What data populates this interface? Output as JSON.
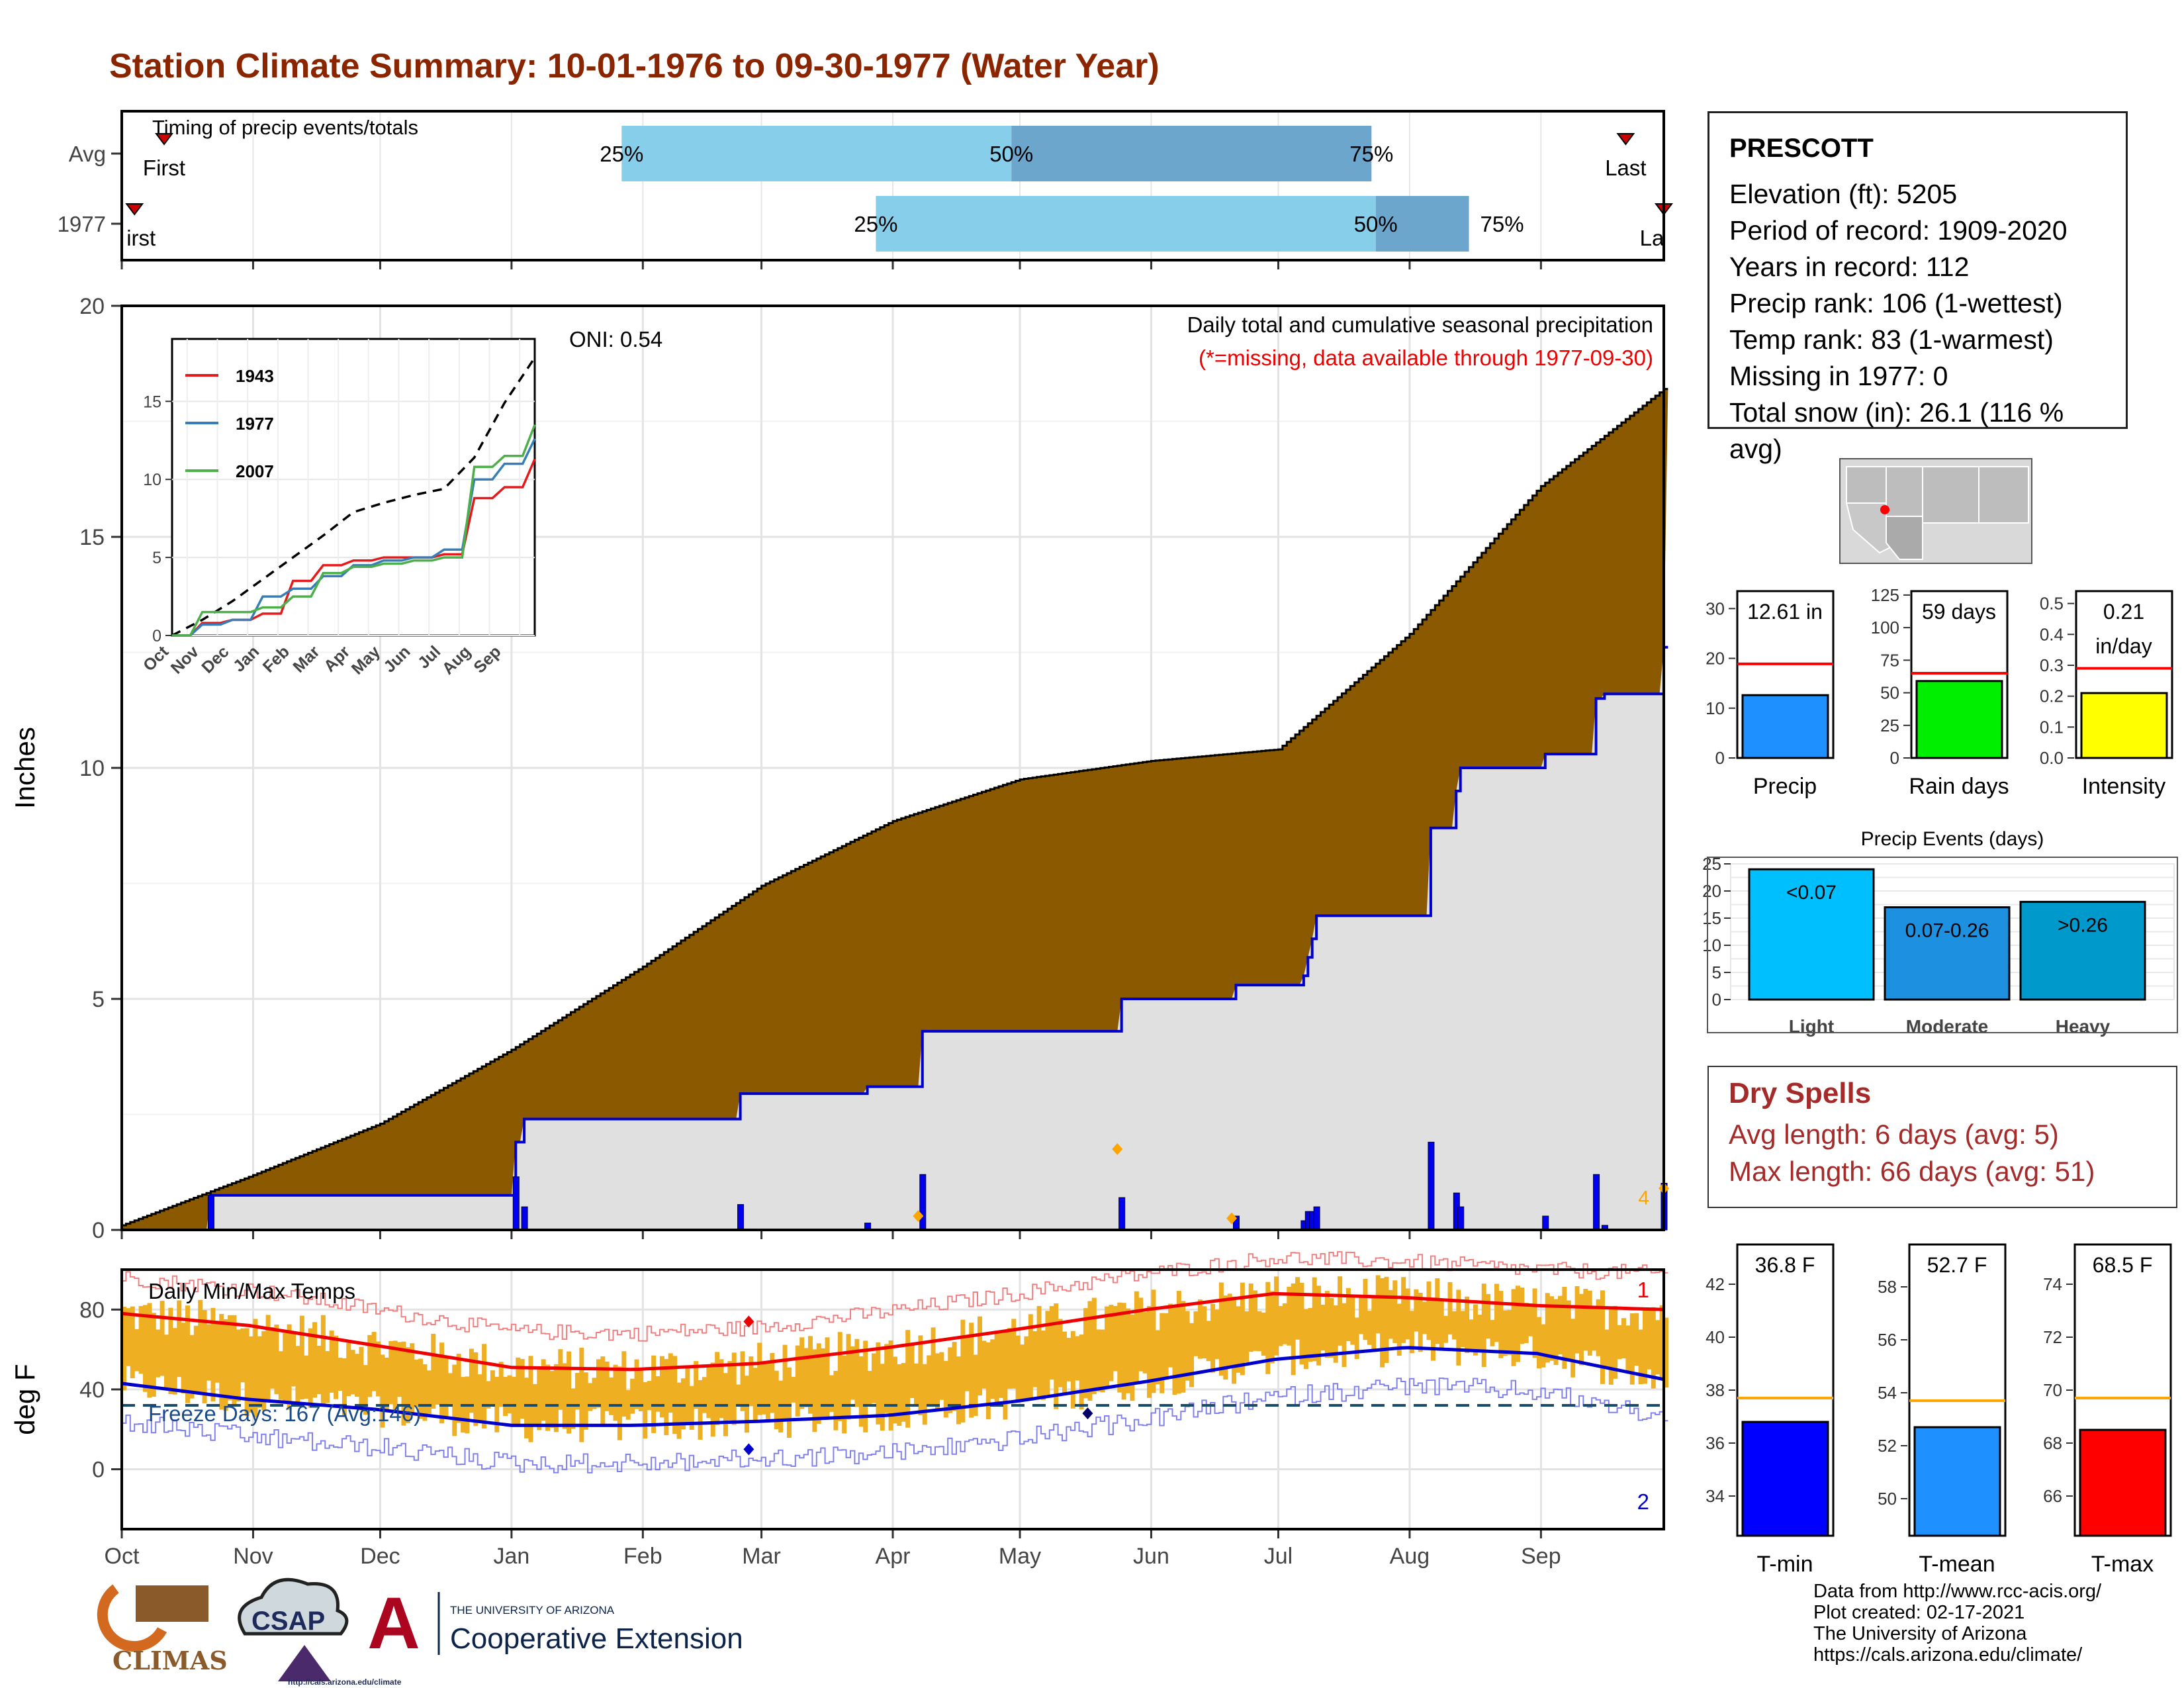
{
  "title": "Station Climate Summary: 10-01-1976 to 09-30-1977 (Water Year)",
  "station": {
    "name": "PRESCOTT",
    "elevation": "Elevation (ft): 5205",
    "period": "Period of record: 1909-2020",
    "years": "Years in record: 112",
    "precip_rank": "Precip rank: 106 (1-wettest)",
    "temp_rank": "Temp rank: 83 (1-warmest)",
    "missing": "Missing in 1977: 0",
    "snow": "Total snow (in): 26.1 (116 % avg)"
  },
  "timing_panel": {
    "title": "Timing of precip events/totals",
    "rows": [
      "Avg",
      "1977"
    ],
    "first_label": "First",
    "last_label": "Last",
    "first_label_1977": "irst",
    "last_label_1977": "La",
    "pct_labels": [
      "25%",
      "50%",
      "75%"
    ],
    "avg_marks_doy": {
      "first": 10,
      "p25": 118,
      "p50": 210,
      "p75": 295,
      "last": 355
    },
    "y1977_marks_doy": {
      "first": 3,
      "p25": 178,
      "p50": 296,
      "p75": 318,
      "last": 364
    }
  },
  "precip_panel": {
    "ylabel": "Inches",
    "yticks": [
      "0",
      "5",
      "10",
      "15",
      "20"
    ],
    "ylim": [
      0,
      20
    ],
    "oni": "ONI: 0.54",
    "caption1": "Daily total and cumulative seasonal precipitation",
    "caption2": "(*=missing, data available through 1977-09-30)",
    "corner_label": "4"
  },
  "inset": {
    "yticks": [
      "0",
      "5",
      "10",
      "15"
    ],
    "months": [
      "Oct",
      "Nov",
      "Dec",
      "Jan",
      "Feb",
      "Mar",
      "Apr",
      "May",
      "Jun",
      "Jul",
      "Aug",
      "Sep"
    ],
    "legend": [
      "1943",
      "1977",
      "2007"
    ]
  },
  "temp_panel": {
    "title": "Daily Min/Max Temps",
    "ylabel": "deg F",
    "yticks": [
      "0",
      "40",
      "80"
    ],
    "freeze": "Freeze Days: 167 (Avg:146)",
    "marker_top": "1",
    "marker_bottom": "2"
  },
  "months": [
    "Oct",
    "Nov",
    "Dec",
    "Jan",
    "Feb",
    "Mar",
    "Apr",
    "May",
    "Jun",
    "Jul",
    "Aug",
    "Sep"
  ],
  "precip_bars": {
    "precip": {
      "label": "Precip",
      "value_text": "12.61 in",
      "value": 12.61,
      "avg": 18.9,
      "ticks": [
        "0",
        "10",
        "20",
        "30"
      ]
    },
    "raindays": {
      "label": "Rain days",
      "value_text": "59 days",
      "value": 59,
      "avg": 65,
      "ticks": [
        "0",
        "25",
        "50",
        "75",
        "100",
        "125"
      ]
    },
    "intensity": {
      "label": "Intensity",
      "value_text_1": "0.21",
      "value_text_2": "in/day",
      "value": 0.21,
      "avg": 0.29,
      "ticks": [
        "0.0",
        "0.1",
        "0.2",
        "0.3",
        "0.4",
        "0.5"
      ]
    }
  },
  "events": {
    "title": "Precip Events (days)",
    "ticks": [
      "0",
      "5",
      "10",
      "15",
      "20",
      "25"
    ],
    "categories": [
      "Light",
      "Moderate",
      "Heavy"
    ],
    "bar_labels": [
      "<0.07",
      "0.07-0.26",
      ">0.26"
    ],
    "values": [
      24,
      17,
      18
    ]
  },
  "dry_spells": {
    "title": "Dry Spells",
    "avg": "Avg length: 6 days (avg: 5)",
    "max": "Max length: 66 days (avg: 51)"
  },
  "temp_bars": {
    "tmin": {
      "label": "T-min",
      "value_text": "36.8 F",
      "value": 36.8,
      "avg": 37.7,
      "ticks": [
        "34",
        "36",
        "38",
        "40",
        "42"
      ]
    },
    "tmean": {
      "label": "T-mean",
      "value_text": "52.7 F",
      "value": 52.7,
      "avg": 53.7,
      "ticks": [
        "50",
        "52",
        "54",
        "56",
        "58"
      ]
    },
    "tmax": {
      "label": "T-max",
      "value_text": "68.5 F",
      "value": 68.5,
      "avg": 69.7,
      "ticks": [
        "66",
        "68",
        "70",
        "72",
        "74"
      ]
    }
  },
  "credits": [
    "Data from http://www.rcc-acis.org/",
    "Plot created: 02-17-2021",
    "The University of Arizona",
    "https://cals.arizona.edu/climate/"
  ],
  "logos": {
    "climas": "CLIMAS",
    "csap": "CSAP",
    "csap_url": "http://cals.arizona.edu/climate",
    "ua_small": "THE UNIVERSITY OF ARIZONA",
    "coop": "Cooperative Extension"
  },
  "chart_data": [
    {
      "type": "area",
      "title": "Daily total and cumulative seasonal precipitation",
      "ylabel": "Inches",
      "ylim": [
        0,
        20
      ],
      "x_unit": "day of water year",
      "series": [
        {
          "name": "",
          "x": [
            0,
            30,
            61,
            92,
            123,
            151,
            182,
            212,
            243,
            273,
            304,
            335,
            364
          ],
          "values": [
            0.1,
            1.15,
            2.3,
            3.9,
            5.7,
            7.45,
            8.85,
            9.75,
            10.15,
            10.4,
            12.9,
            16.1,
            18.2
          ]
        },
        {
          "name": "1977",
          "x": [
            0,
            20,
            21,
            92,
            93,
            95,
            145,
            146,
            175,
            176,
            188,
            189,
            235,
            236,
            262,
            263,
            278,
            279,
            280,
            281,
            282,
            308,
            309,
            314,
            315,
            316,
            335,
            336,
            348,
            350,
            364
          ],
          "values": [
            0,
            0,
            0.75,
            0.75,
            1.9,
            2.4,
            2.4,
            2.95,
            2.95,
            3.1,
            3.1,
            4.3,
            4.3,
            5.0,
            5.0,
            5.3,
            5.3,
            5.5,
            5.9,
            6.3,
            6.8,
            6.8,
            8.7,
            8.7,
            9.5,
            10.0,
            10.0,
            10.3,
            11.5,
            11.6,
            12.61
          ]
        }
      ]
    },
    {
      "type": "line",
      "title": "Daily Min/Max Temps",
      "ylabel": "deg F",
      "x_unit": "day of water year",
      "series": [
        {
          "name": "",
          "x": [
            0,
            30,
            60,
            92,
            121,
            150,
            181,
            211,
            242,
            272,
            303,
            334,
            364
          ],
          "values": [
            78,
            72,
            62,
            51,
            50,
            53,
            61,
            70,
            80,
            88,
            86,
            82,
            80
          ]
        },
        {
          "name": "",
          "x": [
            0,
            30,
            60,
            92,
            121,
            150,
            181,
            211,
            242,
            272,
            303,
            334,
            364
          ],
          "values": [
            43,
            35,
            30,
            22,
            22,
            24,
            27,
            34,
            44,
            55,
            61,
            58,
            45
          ]
        }
      ]
    }
  ]
}
